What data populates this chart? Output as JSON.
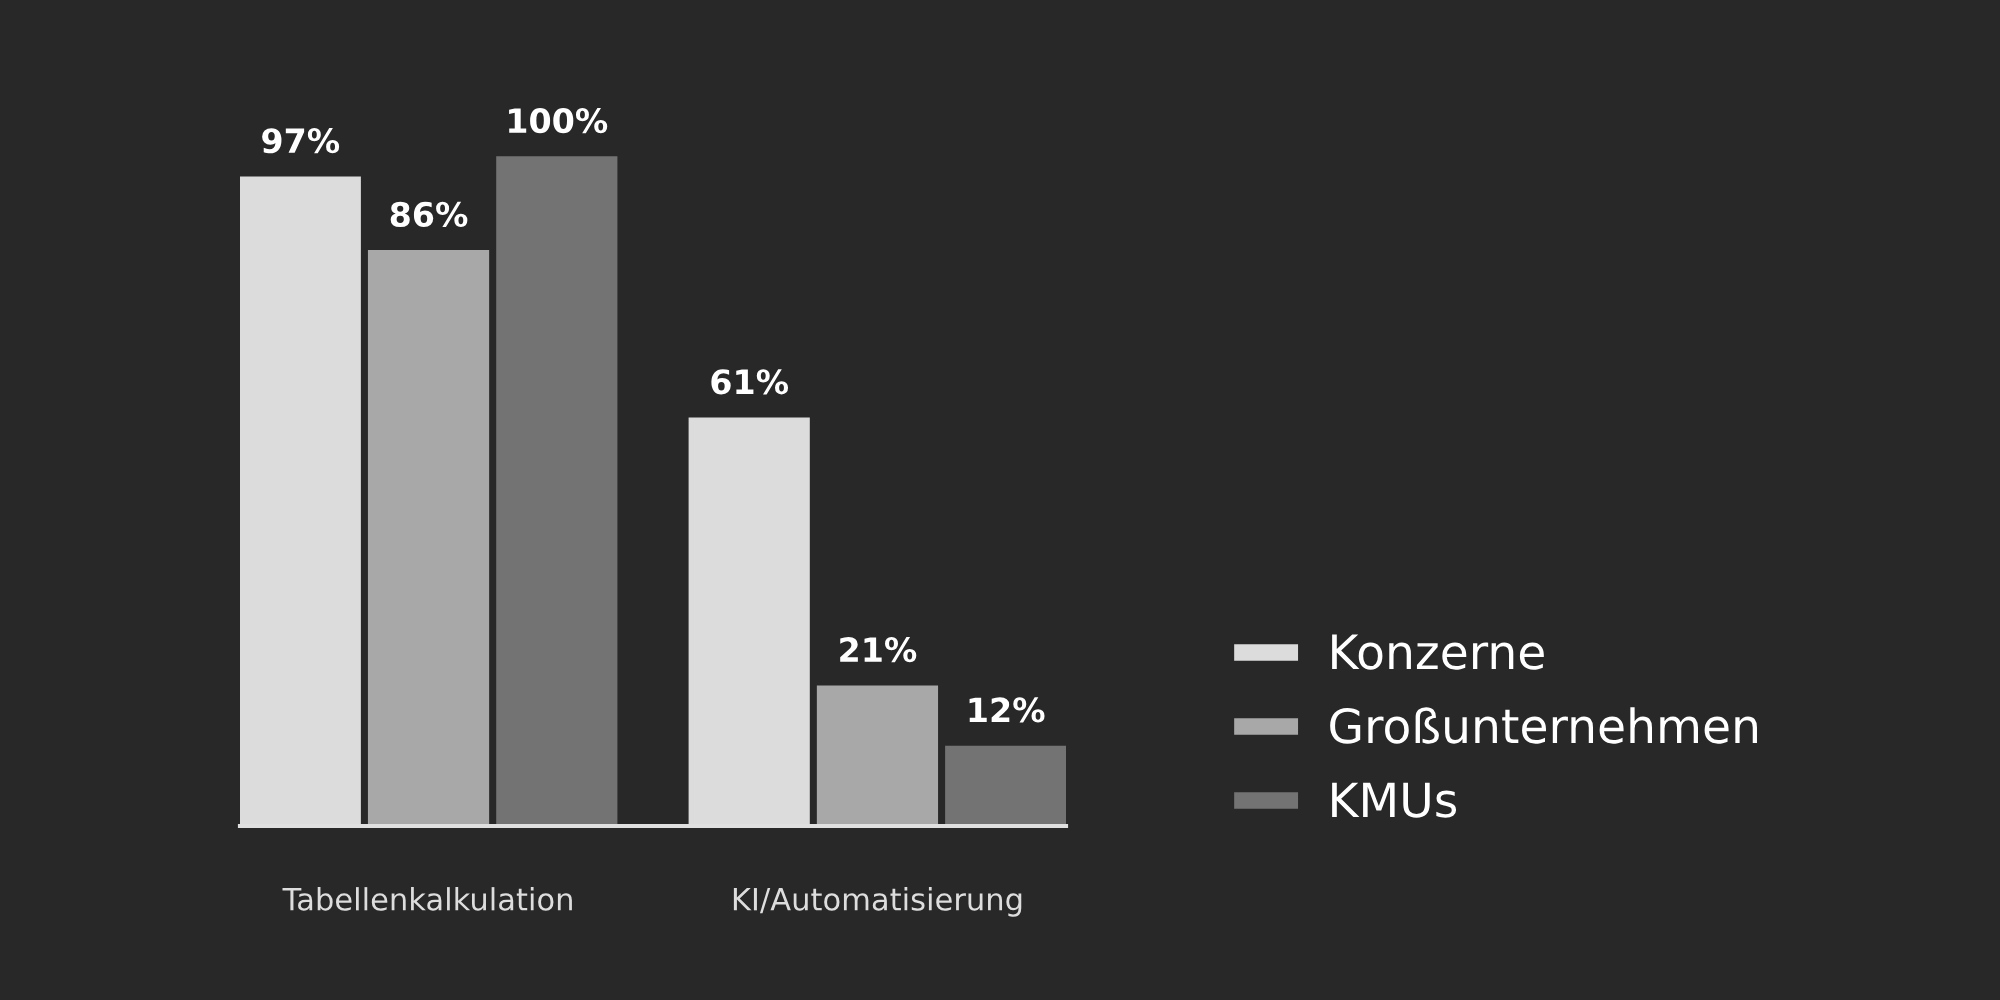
{
  "chart_data": {
    "type": "bar",
    "categories": [
      "Tabellenkalkulation",
      "KI/Automatisierung"
    ],
    "series": [
      {
        "name": "Konzerne",
        "color": "#dcdcdc",
        "values": [
          97,
          61
        ],
        "value_labels": [
          "97%",
          "61%"
        ]
      },
      {
        "name": "Großunternehmen",
        "color": "#a8a8a8",
        "values": [
          86,
          21
        ],
        "value_labels": [
          "86%",
          "21%"
        ]
      },
      {
        "name": "KMUs",
        "color": "#737373",
        "values": [
          100,
          12
        ],
        "value_labels": [
          "100%",
          "12%"
        ]
      }
    ],
    "legend": "right",
    "grid": false,
    "tick_labels": "x"
  }
}
